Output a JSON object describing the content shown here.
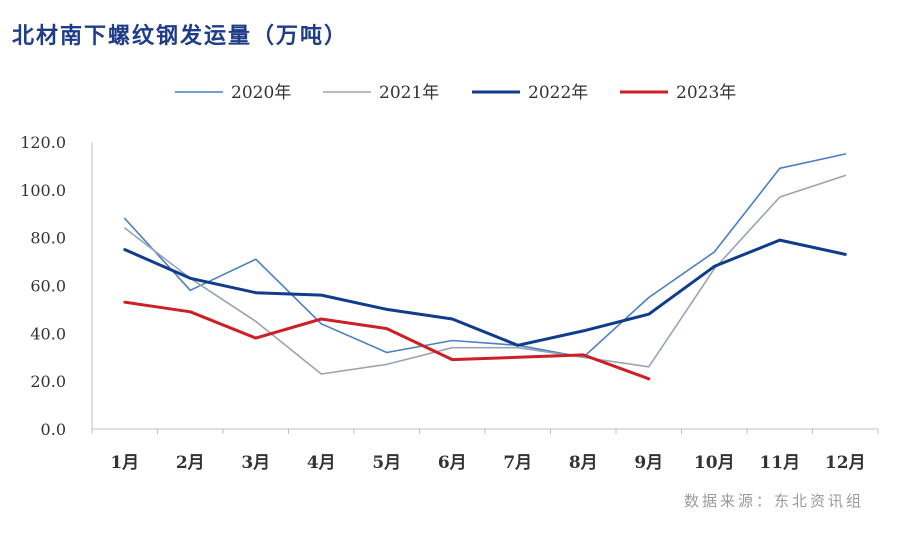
{
  "title": "北材南下螺纹钢发运量（万吨）",
  "source": "数据来源：东北资讯组",
  "chart_data": {
    "type": "line",
    "title": "北材南下螺纹钢发运量（万吨）",
    "xlabel": "",
    "ylabel": "",
    "categories": [
      "1月",
      "2月",
      "3月",
      "4月",
      "5月",
      "6月",
      "7月",
      "8月",
      "9月",
      "10月",
      "11月",
      "12月"
    ],
    "ylim": [
      0,
      120
    ],
    "yticks": [
      "0.0",
      "20.0",
      "40.0",
      "60.0",
      "80.0",
      "100.0",
      "120.0"
    ],
    "grid": false,
    "legend_position": "top-center",
    "series": [
      {
        "name": "2020年",
        "color": "#4a7fc4",
        "width": "thin",
        "values": [
          88,
          58,
          71,
          44,
          32,
          37,
          35,
          30,
          55,
          74,
          109,
          115
        ]
      },
      {
        "name": "2021年",
        "color": "#9aa3b5",
        "width": "thin",
        "values": [
          84,
          63,
          45,
          23,
          27,
          34,
          34,
          30,
          26,
          67,
          97,
          106
        ]
      },
      {
        "name": "2022年",
        "color": "#0f3d8c",
        "width": "thick",
        "values": [
          75,
          63,
          57,
          56,
          50,
          46,
          35,
          41,
          48,
          68,
          79,
          73
        ]
      },
      {
        "name": "2023年",
        "color": "#cc1f26",
        "width": "thick",
        "values": [
          53,
          49,
          38,
          46,
          42,
          29,
          30,
          31,
          21,
          null,
          null,
          null
        ]
      }
    ]
  }
}
